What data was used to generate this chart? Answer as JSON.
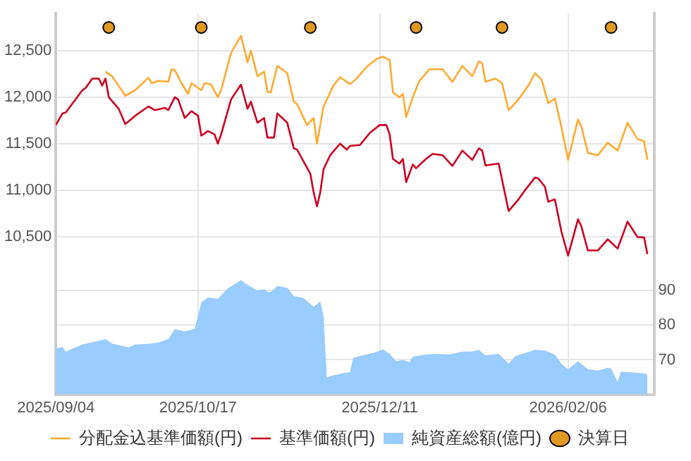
{
  "chart_data": {
    "type": "line",
    "xlim": [
      "2025-09-04",
      "2026-03-04"
    ],
    "xticks": [
      {
        "value": "2025-09-04",
        "label": "2025/09/04"
      },
      {
        "value": "2025-10-17",
        "label": "2025/10/17"
      },
      {
        "value": "2025-12-11",
        "label": "2025/12/11"
      },
      {
        "value": "2026-02-06",
        "label": "2026/02/06"
      }
    ],
    "ylim": [
      8800,
      12900
    ],
    "yticks": [
      {
        "value": 10500,
        "label": "10,500"
      },
      {
        "value": 11000,
        "label": "11,000"
      },
      {
        "value": 11500,
        "label": "11,500"
      },
      {
        "value": 12000,
        "label": "12,000"
      },
      {
        "value": 12500,
        "label": "12,500"
      }
    ],
    "y2lim": [
      60,
      170
    ],
    "y2ticks": [
      70,
      80,
      90
    ],
    "grid": true,
    "legend": "bottom",
    "series": [
      {
        "name": "分配金込基準価額(円)",
        "type": "line",
        "color": "#ffaa33",
        "x": [
          "2025-09-19",
          "2025-09-21",
          "2025-09-25",
          "2025-09-28",
          "2025-10-02",
          "2025-10-03",
          "2025-10-05",
          "2025-10-08",
          "2025-10-09",
          "2025-10-10",
          "2025-10-12",
          "2025-10-14",
          "2025-10-15",
          "2025-10-18",
          "2025-10-19",
          "2025-10-21",
          "2025-10-23",
          "2025-10-24",
          "2025-10-27",
          "2025-10-30",
          "2025-11-01",
          "2025-11-02",
          "2025-11-04",
          "2025-11-06",
          "2025-11-07",
          "2025-11-08",
          "2025-11-10",
          "2025-11-12",
          "2025-11-13",
          "2025-11-15",
          "2025-11-16",
          "2025-11-19",
          "2025-11-21",
          "2025-11-22",
          "2025-11-24",
          "2025-11-27",
          "2025-11-29",
          "2025-12-02",
          "2025-12-04",
          "2025-12-07",
          "2025-12-10",
          "2025-12-12",
          "2025-12-14",
          "2025-12-15",
          "2025-12-17",
          "2025-12-18",
          "2025-12-19",
          "2025-12-21",
          "2025-12-23",
          "2025-12-26",
          "2025-12-30",
          "2026-01-02",
          "2026-01-05",
          "2026-01-08",
          "2026-01-10",
          "2026-01-11",
          "2026-01-12",
          "2026-01-15",
          "2026-01-17",
          "2026-01-19",
          "2026-01-22",
          "2026-01-25",
          "2026-01-27",
          "2026-01-29",
          "2026-01-31",
          "2026-02-02",
          "2026-02-04",
          "2026-02-06",
          "2026-02-09",
          "2026-02-10",
          "2026-02-12",
          "2026-02-15",
          "2026-02-18",
          "2026-02-21",
          "2026-02-24",
          "2026-02-27",
          "2026-03-01",
          "2026-03-02"
        ],
        "values": [
          12275,
          12225,
          12015,
          12075,
          12210,
          12150,
          12175,
          12165,
          12300,
          12290,
          12150,
          12035,
          12150,
          12075,
          12150,
          12135,
          12000,
          12075,
          12475,
          12660,
          12375,
          12500,
          12225,
          12275,
          12060,
          12050,
          12335,
          12285,
          12260,
          11950,
          11925,
          11700,
          11775,
          11500,
          11900,
          12125,
          12215,
          12140,
          12200,
          12325,
          12410,
          12435,
          12400,
          12050,
          12000,
          12035,
          11785,
          12000,
          12175,
          12300,
          12300,
          12165,
          12335,
          12225,
          12385,
          12365,
          12165,
          12200,
          12150,
          11860,
          11975,
          12125,
          12260,
          12185,
          11935,
          11985,
          11675,
          11325,
          11760,
          11685,
          11400,
          11375,
          11510,
          11425,
          11725,
          11550,
          11525,
          11325
        ]
      },
      {
        "name": "基準価額(円)",
        "type": "line",
        "color": "#cc0022",
        "x": [
          "2025-09-04",
          "2025-09-06",
          "2025-09-07",
          "2025-09-12",
          "2025-09-13",
          "2025-09-15",
          "2025-09-17",
          "2025-09-18",
          "2025-09-19",
          "2025-09-20",
          "2025-09-23",
          "2025-09-25",
          "2025-09-28",
          "2025-10-02",
          "2025-10-04",
          "2025-10-07",
          "2025-10-08",
          "2025-10-10",
          "2025-10-11",
          "2025-10-13",
          "2025-10-15",
          "2025-10-17",
          "2025-10-18",
          "2025-10-20",
          "2025-10-22",
          "2025-10-23",
          "2025-10-24",
          "2025-10-27",
          "2025-10-30",
          "2025-11-01",
          "2025-11-02",
          "2025-11-04",
          "2025-11-06",
          "2025-11-07",
          "2025-11-09",
          "2025-11-10",
          "2025-11-13",
          "2025-11-15",
          "2025-11-16",
          "2025-11-20",
          "2025-11-21",
          "2025-11-22",
          "2025-11-23",
          "2025-11-24",
          "2025-11-26",
          "2025-11-29",
          "2025-12-01",
          "2025-12-02",
          "2025-12-05",
          "2025-12-08",
          "2025-12-11",
          "2025-12-13",
          "2025-12-14",
          "2025-12-15",
          "2025-12-17",
          "2025-12-18",
          "2025-12-19",
          "2025-12-21",
          "2025-12-22",
          "2025-12-25",
          "2025-12-27",
          "2025-12-30",
          "2026-01-02",
          "2026-01-05",
          "2026-01-08",
          "2026-01-10",
          "2026-01-11",
          "2026-01-12",
          "2026-01-16",
          "2026-01-19",
          "2026-01-22",
          "2026-01-24",
          "2026-01-27",
          "2026-01-28",
          "2026-01-30",
          "2026-01-31",
          "2026-02-02",
          "2026-02-04",
          "2026-02-06",
          "2026-02-09",
          "2026-02-10",
          "2026-02-12",
          "2026-02-15",
          "2026-02-18",
          "2026-02-21",
          "2026-02-24",
          "2026-02-27",
          "2026-03-01",
          "2026-03-02"
        ],
        "values": [
          11700,
          11825,
          11835,
          12075,
          12100,
          12200,
          12200,
          12125,
          12200,
          12000,
          11875,
          11710,
          11800,
          11900,
          11860,
          11885,
          11860,
          12000,
          11975,
          11775,
          11850,
          11800,
          11585,
          11635,
          11600,
          11500,
          11600,
          11975,
          12135,
          11875,
          11950,
          11725,
          11775,
          11565,
          11565,
          11825,
          11725,
          11450,
          11435,
          11175,
          10975,
          10825,
          10975,
          11225,
          11375,
          11500,
          11435,
          11475,
          11485,
          11615,
          11700,
          11700,
          11600,
          11335,
          11285,
          11335,
          11085,
          11275,
          11235,
          11335,
          11390,
          11375,
          11260,
          11425,
          11325,
          11450,
          11425,
          11265,
          11285,
          10775,
          10900,
          11000,
          11135,
          11125,
          11035,
          10875,
          10900,
          10550,
          10295,
          10685,
          10610,
          10350,
          10350,
          10470,
          10370,
          10660,
          10495,
          10490,
          10310
        ]
      },
      {
        "name": "純資産総額(億円)",
        "type": "area",
        "axis": "y2",
        "color": "#99ccff",
        "x": [
          "2025-09-04",
          "2025-09-06",
          "2025-09-07",
          "2025-09-12",
          "2025-09-16",
          "2025-09-19",
          "2025-09-21",
          "2025-09-26",
          "2025-09-28",
          "2025-10-02",
          "2025-10-05",
          "2025-10-08",
          "2025-10-10",
          "2025-10-13",
          "2025-10-16",
          "2025-10-18",
          "2025-10-20",
          "2025-10-23",
          "2025-10-26",
          "2025-10-30",
          "2025-11-01",
          "2025-11-04",
          "2025-11-06",
          "2025-11-07",
          "2025-11-08",
          "2025-11-10",
          "2025-11-13",
          "2025-11-15",
          "2025-11-18",
          "2025-11-21",
          "2025-11-23",
          "2025-11-24",
          "2025-11-25",
          "2025-11-26",
          "2025-11-29",
          "2025-12-02",
          "2025-12-03",
          "2025-12-06",
          "2025-12-09",
          "2025-12-12",
          "2025-12-14",
          "2025-12-16",
          "2025-12-18",
          "2025-12-20",
          "2025-12-21",
          "2025-12-25",
          "2025-12-28",
          "2026-01-01",
          "2026-01-05",
          "2026-01-08",
          "2026-01-10",
          "2026-01-12",
          "2026-01-16",
          "2026-01-19",
          "2026-01-21",
          "2026-01-24",
          "2026-01-27",
          "2026-01-30",
          "2026-02-02",
          "2026-02-04",
          "2026-02-06",
          "2026-02-09",
          "2026-02-12",
          "2026-02-15",
          "2026-02-18",
          "2026-02-19",
          "2026-02-21",
          "2026-02-22",
          "2026-02-25",
          "2026-03-01",
          "2026-03-02"
        ],
        "values": [
          73.3,
          73.7,
          72.4,
          74.4,
          75.3,
          76,
          74.7,
          73.6,
          74.4,
          74.6,
          75,
          76,
          78.9,
          78.2,
          79,
          86.6,
          88,
          87.6,
          90.6,
          93,
          91.6,
          90,
          90.4,
          89.6,
          89.6,
          91.3,
          90.8,
          88.4,
          87.8,
          85.3,
          86.9,
          82.6,
          64.9,
          65.3,
          65.9,
          66.5,
          70.6,
          71.3,
          72,
          73,
          71.7,
          69.6,
          70,
          69.3,
          70.9,
          71.5,
          71.7,
          71.5,
          72.4,
          72.4,
          72.9,
          71.3,
          71.7,
          68.9,
          71.1,
          72,
          72.9,
          72.7,
          71.5,
          68.9,
          67.3,
          69.6,
          67.3,
          66.9,
          67.7,
          67.5,
          63.7,
          66.6,
          66.4,
          66.1,
          65.7
        ]
      },
      {
        "name": "決算日",
        "type": "scatter",
        "marker": "circle",
        "color": "#e09a20",
        "x": [
          "2025-09-20",
          "2025-10-18",
          "2025-11-20",
          "2025-12-22",
          "2026-01-17",
          "2026-02-19"
        ],
        "values": [
          12750,
          12750,
          12750,
          12750,
          12750,
          12750
        ]
      }
    ]
  }
}
